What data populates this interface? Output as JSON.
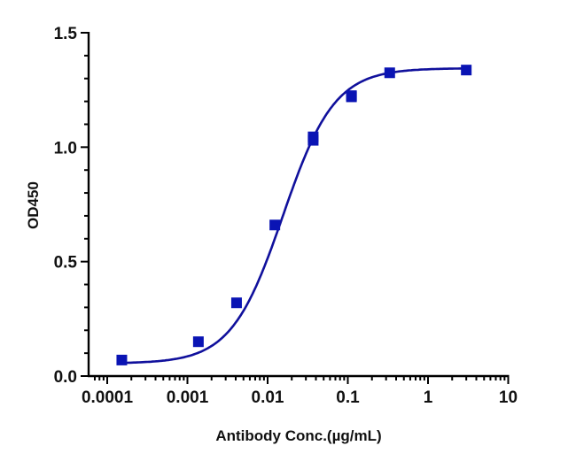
{
  "chart_data": {
    "type": "scatter",
    "title": "",
    "xlabel": "Antibody Conc.(µg/mL)",
    "ylabel": "OD450",
    "x_scale": "log",
    "xlim": [
      0.0001,
      10
    ],
    "ylim": [
      0,
      1.5
    ],
    "grid": false,
    "legend": null,
    "x_ticks": [
      "0.0001",
      "0.001",
      "0.01",
      "0.1",
      "1",
      "10"
    ],
    "y_ticks": [
      "0.0",
      "0.5",
      "1.0",
      "1.5"
    ],
    "series": [
      {
        "name": "OD450",
        "marker": "square",
        "color": "#0a14b4",
        "line_color": "#10109c",
        "fit": "4-parameter logistic",
        "points": [
          {
            "x": 0.000152,
            "y": 0.07
          },
          {
            "x": 0.00137,
            "y": 0.15
          },
          {
            "x": 0.0041,
            "y": 0.32
          },
          {
            "x": 0.0123,
            "y": 0.66
          },
          {
            "x": 0.037,
            "y": 1.03
          },
          {
            "x": 0.037,
            "y": 1.045
          },
          {
            "x": 0.111,
            "y": 1.22
          },
          {
            "x": 0.111,
            "y": 1.225
          },
          {
            "x": 0.333,
            "y": 1.325
          },
          {
            "x": 3.0,
            "y": 1.337
          }
        ],
        "fit_params": {
          "bottom": 0.055,
          "top": 1.345,
          "ec50": 0.0155,
          "hill": 1.35
        }
      }
    ]
  }
}
